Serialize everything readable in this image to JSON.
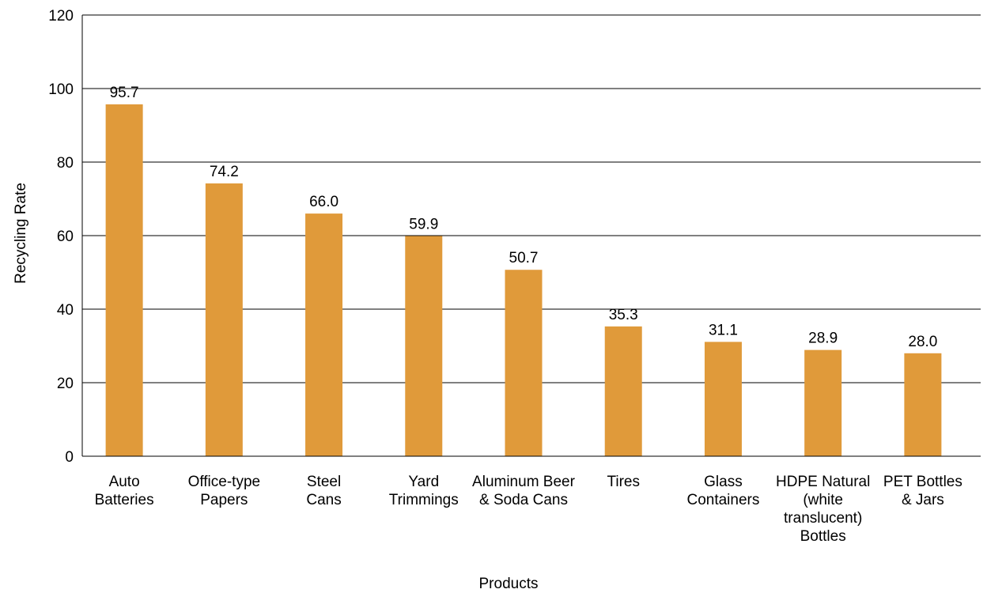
{
  "chart_data": {
    "type": "bar",
    "categories": [
      "Auto\nBatteries",
      "Office-type\nPapers",
      "Steel\nCans",
      "Yard\nTrimmings",
      "Aluminum Beer\n& Soda Cans",
      "Tires",
      "Glass\nContainers",
      "HDPE Natural\n(white\ntranslucent)\nBottles",
      "PET Bottles\n& Jars"
    ],
    "values": [
      95.7,
      74.2,
      66.0,
      59.9,
      50.7,
      35.3,
      31.1,
      28.9,
      28.0
    ],
    "value_labels": [
      "95.7",
      "74.2",
      "66.0",
      "59.9",
      "50.7",
      "35.3",
      "31.1",
      "28.9",
      "28.0"
    ],
    "title": "",
    "xlabel": "Products",
    "ylabel": "Recycling Rate",
    "ylim": [
      0,
      120
    ],
    "yticks": [
      0,
      20,
      40,
      60,
      80,
      100,
      120
    ],
    "grid": true,
    "legend": "none",
    "colors": {
      "bar": "#E09A3A",
      "grid": "#000000",
      "axis": "#000000"
    }
  }
}
